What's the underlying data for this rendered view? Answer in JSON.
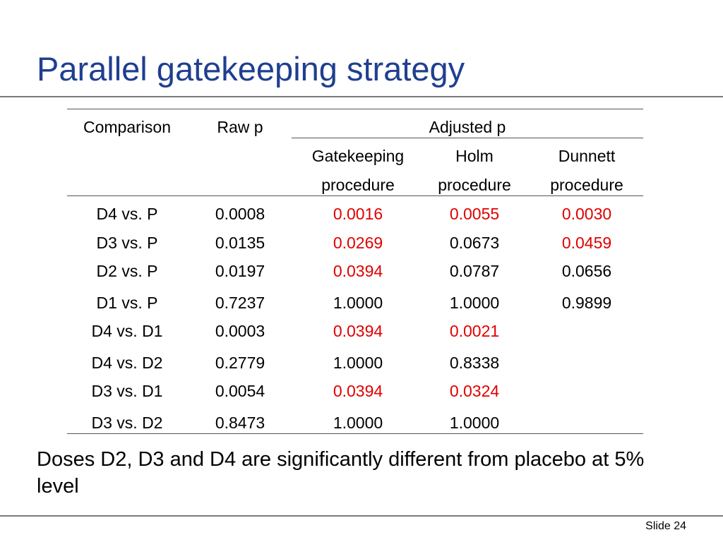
{
  "slide": {
    "title": "Parallel gatekeeping strategy",
    "footer": "Slide 24"
  },
  "table": {
    "headers": {
      "comparison": "Comparison",
      "raw_p": "Raw p",
      "adjusted_p": "Adjusted p",
      "gatekeeping_1": "Gatekeeping",
      "gatekeeping_2": "procedure",
      "holm_1": "Holm",
      "holm_2": "procedure",
      "dunnett_1": "Dunnett",
      "dunnett_2": "procedure"
    },
    "rows": [
      {
        "comparison": "D4 vs. P",
        "raw": "0.0008",
        "gk": "0.0016",
        "holm": "0.0055",
        "dunnett": "0.0030"
      },
      {
        "comparison": "D3 vs. P",
        "raw": "0.0135",
        "gk": "0.0269",
        "holm": "0.0673",
        "dunnett": "0.0459"
      },
      {
        "comparison": "D2 vs. P",
        "raw": "0.0197",
        "gk": "0.0394",
        "holm": "0.0787",
        "dunnett": "0.0656"
      },
      {
        "comparison": "D1 vs. P",
        "raw": "0.7237",
        "gk": "1.0000",
        "holm": "1.0000",
        "dunnett": "0.9899"
      },
      {
        "comparison": "D4 vs. D1",
        "raw": "0.0003",
        "gk": "0.0394",
        "holm": "0.0021",
        "dunnett": ""
      },
      {
        "comparison": "D4 vs. D2",
        "raw": "0.2779",
        "gk": "1.0000",
        "holm": "0.8338",
        "dunnett": ""
      },
      {
        "comparison": "D3 vs. D1",
        "raw": "0.0054",
        "gk": "0.0394",
        "holm": "0.0324",
        "dunnett": ""
      },
      {
        "comparison": "D3 vs. D2",
        "raw": "0.8473",
        "gk": "1.0000",
        "holm": "1.0000",
        "dunnett": ""
      }
    ],
    "highlight_color": "#e00000"
  },
  "conclusion": "Doses D2, D3 and D4 are significantly different from placebo at 5% level"
}
